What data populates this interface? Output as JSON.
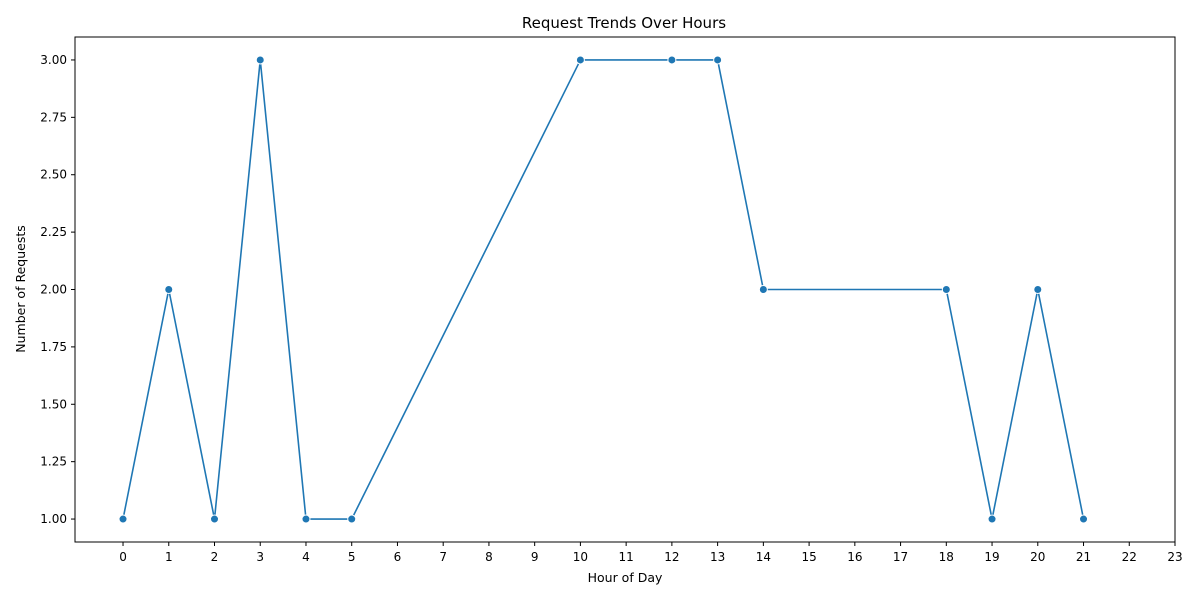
{
  "colors": {
    "series_line": "#1f77b4",
    "axes": "#000000",
    "background": "#ffffff"
  },
  "chart_data": {
    "type": "line",
    "title": "Request Trends Over Hours",
    "xlabel": "Hour of Day",
    "ylabel": "Number of Requests",
    "xlim": [
      -1.05,
      23.0
    ],
    "ylim": [
      0.9,
      3.1
    ],
    "x_ticks": [
      0,
      1,
      2,
      3,
      4,
      5,
      6,
      7,
      8,
      9,
      10,
      11,
      12,
      13,
      14,
      15,
      16,
      17,
      18,
      19,
      20,
      21,
      22,
      23
    ],
    "x_tick_labels": [
      "0",
      "1",
      "2",
      "3",
      "4",
      "5",
      "6",
      "7",
      "8",
      "9",
      "10",
      "11",
      "12",
      "13",
      "14",
      "15",
      "16",
      "17",
      "18",
      "19",
      "20",
      "21",
      "22",
      "23"
    ],
    "y_ticks": [
      1.0,
      1.25,
      1.5,
      1.75,
      2.0,
      2.25,
      2.5,
      2.75,
      3.0
    ],
    "y_tick_labels": [
      "1.00",
      "1.25",
      "1.50",
      "1.75",
      "2.00",
      "2.25",
      "2.50",
      "2.75",
      "3.00"
    ],
    "grid": false,
    "markers": "circle",
    "series": [
      {
        "x": [
          0,
          1,
          2,
          3,
          4,
          5,
          10,
          12,
          13,
          14,
          18,
          19,
          20,
          21
        ],
        "y": [
          1,
          2,
          1,
          3,
          1,
          1,
          3,
          3,
          3,
          2,
          2,
          1,
          2,
          1
        ]
      }
    ]
  }
}
